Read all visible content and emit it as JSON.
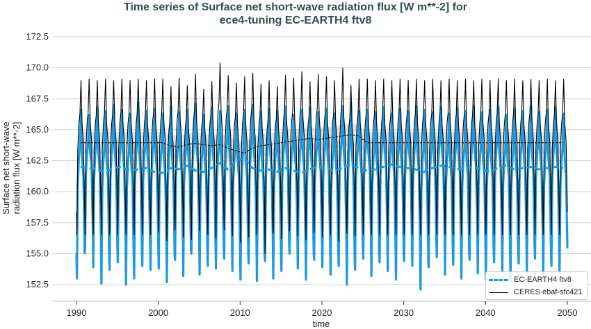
{
  "chart_data": {
    "type": "line",
    "title": "Time series of Surface net short-wave radiation flux [W m**-2] for",
    "title_line2": "ece4-tuning EC-EARTH4 ftv8",
    "xlabel": "time",
    "ylabel_line1": "Surface net short-wave",
    "ylabel_line2": "radiation flux [W m**-2]",
    "xlim": [
      1988.5,
      2051.5
    ],
    "ylim": [
      151.3,
      173.5
    ],
    "xticks": [
      "1990",
      "2000",
      "2010",
      "2020",
      "2030",
      "2040",
      "2050"
    ],
    "yticks": [
      "152.5",
      "155.0",
      "157.5",
      "160.0",
      "162.5",
      "165.0",
      "167.5",
      "170.0",
      "172.5"
    ],
    "grid": "horizontal",
    "legend_position": "bottom-right",
    "years_start": 1990,
    "series": [
      {
        "name": "EC-EARTH4 ftv8",
        "color": "#1b9ae0",
        "style": "monthly seasonal cycle, dashed running mean",
        "annual_max": [
          166.6,
          166.2,
          166.8,
          166.5,
          167.0,
          166.6,
          166.3,
          167.2,
          166.5,
          166.7,
          166.3,
          166.9,
          166.4,
          166.6,
          167.1,
          166.2,
          166.8,
          166.5,
          166.9,
          166.3,
          166.6,
          167.0,
          166.4,
          166.7,
          166.5,
          166.9,
          166.2,
          166.6,
          166.8,
          166.4,
          166.7,
          166.3,
          166.9,
          167.2,
          166.5,
          166.6,
          166.4,
          166.8,
          166.3,
          166.7,
          166.5,
          166.9,
          166.6,
          166.4,
          166.8,
          166.3,
          166.7,
          166.5,
          166.9,
          166.4,
          166.6,
          166.8,
          166.2,
          166.7,
          166.5,
          166.9,
          166.4,
          166.6,
          166.8,
          166.3
        ],
        "annual_min": [
          153.0,
          155.4,
          153.9,
          152.6,
          153.7,
          154.3,
          152.5,
          153.0,
          154.0,
          153.7,
          153.8,
          152.7,
          154.5,
          153.2,
          155.0,
          153.3,
          154.0,
          153.8,
          154.6,
          153.6,
          152.9,
          154.2,
          152.8,
          154.4,
          153.0,
          153.6,
          155.0,
          153.8,
          152.9,
          154.5,
          153.9,
          153.3,
          154.0,
          152.5,
          153.7,
          154.6,
          153.2,
          154.3,
          153.6,
          152.9,
          154.4,
          154.0,
          152.1,
          153.9,
          154.7,
          153.3,
          154.1,
          153.0,
          154.5,
          153.4,
          152.9,
          154.3,
          153.6,
          152.7,
          154.2,
          153.5,
          154.6,
          153.1,
          154.0,
          153.5
        ],
        "running_mean": [
          162.0,
          161.9,
          161.8,
          161.6,
          161.9,
          162.0,
          161.7,
          161.8,
          161.9,
          161.6,
          161.5,
          161.9,
          161.8,
          162.1,
          161.7,
          161.6,
          161.9,
          162.3,
          161.8,
          162.5,
          162.7,
          161.9,
          161.7,
          161.8,
          161.6,
          161.9,
          161.7,
          161.5,
          161.8,
          162.0,
          161.9,
          161.7,
          161.9,
          162.2,
          161.9,
          161.7,
          161.8,
          162.0,
          162.2,
          162.0,
          161.9,
          161.8,
          161.6,
          161.9,
          162.1,
          162.0,
          161.8,
          161.9,
          162.0,
          161.8,
          161.6,
          161.9,
          162.1,
          161.8,
          161.9,
          162.0,
          161.8,
          161.9,
          162.0,
          161.9
        ]
      },
      {
        "name": "CERES ebaf-sfc421",
        "color": "#000000",
        "style": "monthly seasonal cycle, running mean with spread band",
        "annual_max": [
          169.0,
          169.1,
          169.0,
          169.1,
          169.0,
          169.1,
          169.0,
          169.1,
          169.0,
          169.1,
          169.1,
          168.5,
          169.2,
          168.6,
          169.5,
          168.3,
          168.9,
          170.4,
          169.4,
          168.8,
          169.3,
          169.6,
          168.7,
          169.0,
          168.5,
          169.4,
          169.2,
          169.7,
          168.9,
          169.5,
          169.3,
          169.0,
          170.0,
          168.6,
          169.1,
          169.1,
          169.0,
          169.1,
          169.0,
          169.1,
          169.0,
          169.1,
          169.0,
          169.1,
          169.0,
          169.1,
          169.0,
          169.1,
          169.0,
          169.1,
          169.0,
          169.1,
          169.0,
          169.1,
          169.0,
          169.1,
          169.0,
          169.1,
          169.0,
          169.1
        ],
        "annual_min": [
          156.5,
          156.5,
          156.5,
          156.5,
          156.5,
          156.5,
          156.5,
          156.5,
          156.5,
          156.5,
          156.7,
          156.0,
          156.9,
          156.3,
          156.1,
          156.8,
          156.5,
          156.2,
          156.9,
          156.4,
          155.9,
          156.3,
          156.5,
          155.0,
          156.6,
          156.2,
          156.8,
          156.4,
          156.1,
          156.7,
          156.3,
          156.5,
          156.0,
          156.6,
          156.4,
          156.5,
          156.5,
          156.5,
          156.5,
          156.5,
          156.5,
          156.5,
          156.5,
          156.5,
          156.5,
          156.5,
          156.5,
          156.5,
          156.5,
          156.5,
          156.5,
          156.5,
          156.5,
          156.5,
          156.5,
          156.5,
          156.5,
          156.5,
          156.5,
          156.5
        ],
        "running_mean": [
          163.95,
          163.95,
          163.95,
          163.95,
          163.95,
          163.95,
          163.95,
          163.95,
          163.95,
          163.95,
          163.95,
          163.7,
          163.6,
          163.8,
          163.9,
          163.8,
          163.7,
          163.8,
          163.5,
          163.3,
          163.1,
          163.5,
          163.7,
          163.8,
          163.9,
          164.0,
          164.1,
          164.2,
          164.3,
          164.2,
          164.3,
          164.4,
          164.5,
          164.6,
          164.5,
          163.95,
          163.95,
          163.95,
          163.95,
          163.95,
          163.95,
          163.95,
          163.95,
          163.95,
          163.95,
          163.95,
          163.95,
          163.95,
          163.95,
          163.95,
          163.95,
          163.95,
          163.95,
          163.95,
          163.95,
          163.95,
          163.95,
          163.95,
          163.95,
          163.95
        ],
        "observed_years": [
          2000,
          2024
        ]
      }
    ]
  }
}
